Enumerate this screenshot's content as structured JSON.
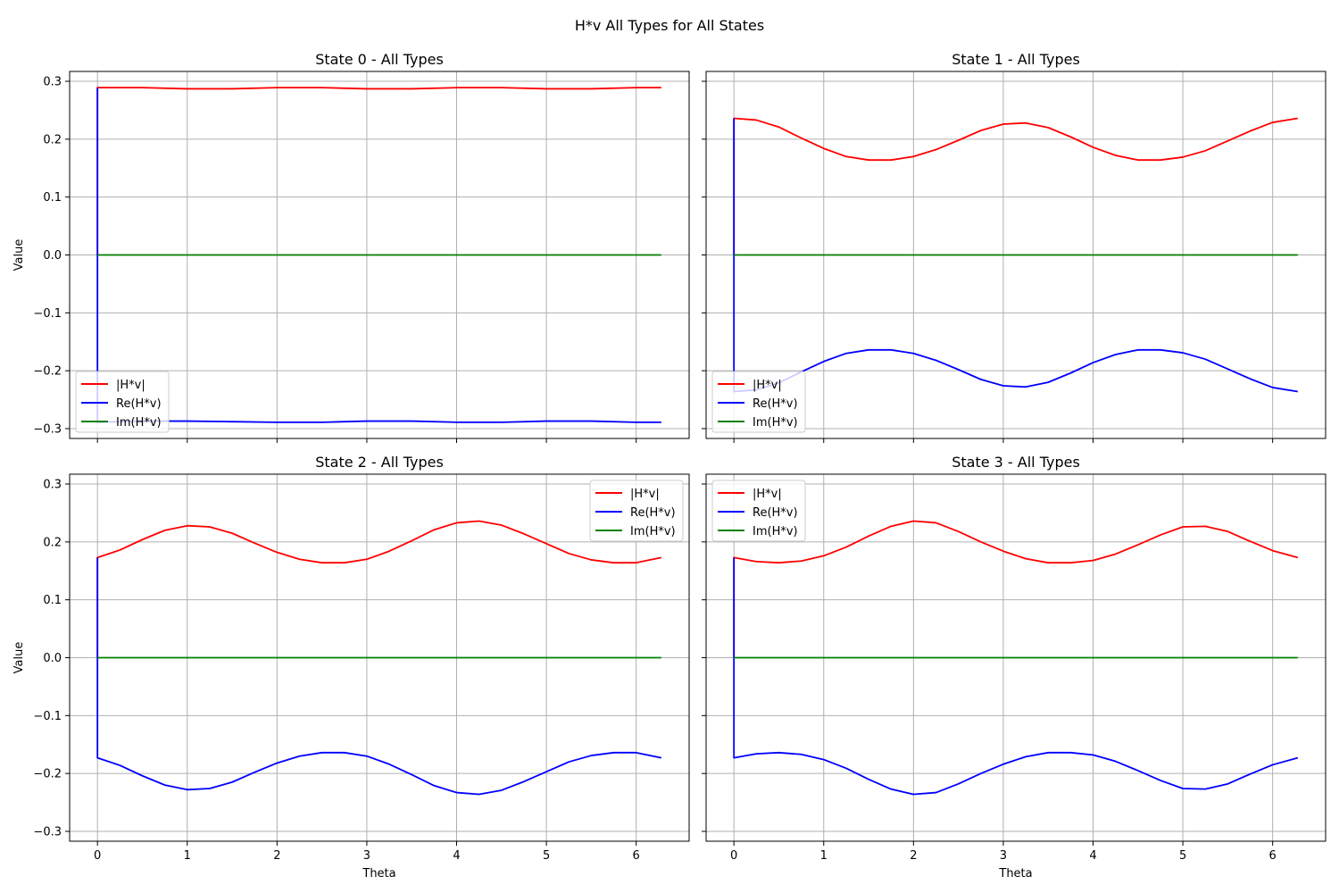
{
  "figure": {
    "suptitle": "H*v All Types for All States",
    "colors": {
      "abs": "#ff0000",
      "re": "#0000ff",
      "im": "#008000",
      "grid": "#b0b0b0",
      "axis": "#000000"
    }
  },
  "chart_data": [
    {
      "type": "line",
      "title": "State 0 - All Types",
      "xlabel": "",
      "ylabel": "Value",
      "xlim": [
        -0.31,
        6.59
      ],
      "ylim": [
        -0.317,
        0.317
      ],
      "xticks": [
        0,
        1,
        2,
        3,
        4,
        5,
        6
      ],
      "yticks": [
        -0.3,
        -0.2,
        -0.1,
        0.0,
        0.1,
        0.2,
        0.3
      ],
      "grid": true,
      "legend": "lower-left",
      "series": [
        {
          "name": "|H*v|",
          "color": "#ff0000",
          "x": [
            0,
            0,
            0.5,
            1,
            1.5,
            2,
            2.5,
            3,
            3.5,
            4,
            4.5,
            5,
            5.5,
            6,
            6.28
          ],
          "y": [
            0,
            0.289,
            0.289,
            0.287,
            0.287,
            0.289,
            0.289,
            0.287,
            0.287,
            0.289,
            0.289,
            0.287,
            0.287,
            0.289,
            0.289
          ]
        },
        {
          "name": "Re(H*v)",
          "color": "#0000ff",
          "x": [
            0,
            0,
            0.5,
            1,
            1.5,
            2,
            2.5,
            3,
            3.5,
            4,
            4.5,
            5,
            5.5,
            6,
            6.28
          ],
          "y": [
            0.289,
            -0.289,
            -0.287,
            -0.287,
            -0.288,
            -0.289,
            -0.289,
            -0.287,
            -0.287,
            -0.289,
            -0.289,
            -0.287,
            -0.287,
            -0.289,
            -0.289
          ]
        },
        {
          "name": "Im(H*v)",
          "color": "#008000",
          "x": [
            0,
            6.28
          ],
          "y": [
            0,
            0
          ]
        }
      ]
    },
    {
      "type": "line",
      "title": "State 1 - All Types",
      "xlabel": "",
      "ylabel": "",
      "xlim": [
        -0.31,
        6.59
      ],
      "ylim": [
        -0.317,
        0.317
      ],
      "xticks": [
        0,
        1,
        2,
        3,
        4,
        5,
        6
      ],
      "yticks": [
        -0.3,
        -0.2,
        -0.1,
        0.0,
        0.1,
        0.2,
        0.3
      ],
      "grid": true,
      "legend": "lower-left",
      "series": [
        {
          "name": "|H*v|",
          "color": "#ff0000",
          "x": [
            0,
            0,
            0.25,
            0.5,
            0.75,
            1,
            1.25,
            1.5,
            1.75,
            2,
            2.25,
            2.5,
            2.75,
            3,
            3.25,
            3.5,
            3.75,
            4,
            4.25,
            4.5,
            4.75,
            5,
            5.25,
            5.5,
            5.75,
            6,
            6.28
          ],
          "y": [
            0,
            0.236,
            0.233,
            0.221,
            0.202,
            0.184,
            0.17,
            0.164,
            0.164,
            0.17,
            0.182,
            0.198,
            0.215,
            0.226,
            0.228,
            0.22,
            0.204,
            0.186,
            0.172,
            0.164,
            0.164,
            0.169,
            0.18,
            0.197,
            0.214,
            0.229,
            0.236
          ]
        },
        {
          "name": "Re(H*v)",
          "color": "#0000ff",
          "x": [
            0,
            0,
            0.25,
            0.5,
            0.75,
            1,
            1.25,
            1.5,
            1.75,
            2,
            2.25,
            2.5,
            2.75,
            3,
            3.25,
            3.5,
            3.75,
            4,
            4.25,
            4.5,
            4.75,
            5,
            5.25,
            5.5,
            5.75,
            6,
            6.28
          ],
          "y": [
            0.236,
            -0.236,
            -0.233,
            -0.221,
            -0.202,
            -0.184,
            -0.17,
            -0.164,
            -0.164,
            -0.17,
            -0.182,
            -0.198,
            -0.215,
            -0.226,
            -0.228,
            -0.22,
            -0.204,
            -0.186,
            -0.172,
            -0.164,
            -0.164,
            -0.169,
            -0.18,
            -0.197,
            -0.214,
            -0.229,
            -0.236
          ]
        },
        {
          "name": "Im(H*v)",
          "color": "#008000",
          "x": [
            0,
            6.28
          ],
          "y": [
            0,
            0
          ]
        }
      ]
    },
    {
      "type": "line",
      "title": "State 2 - All Types",
      "xlabel": "Theta",
      "ylabel": "Value",
      "xlim": [
        -0.31,
        6.59
      ],
      "ylim": [
        -0.317,
        0.317
      ],
      "xticks": [
        0,
        1,
        2,
        3,
        4,
        5,
        6
      ],
      "yticks": [
        -0.3,
        -0.2,
        -0.1,
        0.0,
        0.1,
        0.2,
        0.3
      ],
      "grid": true,
      "legend": "upper-right",
      "series": [
        {
          "name": "|H*v|",
          "color": "#ff0000",
          "x": [
            0,
            0,
            0.25,
            0.5,
            0.75,
            1,
            1.25,
            1.5,
            1.75,
            2,
            2.25,
            2.5,
            2.75,
            3,
            3.25,
            3.5,
            3.75,
            4,
            4.25,
            4.5,
            4.75,
            5,
            5.25,
            5.5,
            5.75,
            6,
            6.28
          ],
          "y": [
            0,
            0.173,
            0.186,
            0.204,
            0.22,
            0.228,
            0.226,
            0.215,
            0.198,
            0.182,
            0.17,
            0.164,
            0.164,
            0.17,
            0.184,
            0.202,
            0.221,
            0.233,
            0.236,
            0.229,
            0.214,
            0.197,
            0.18,
            0.169,
            0.164,
            0.164,
            0.173
          ]
        },
        {
          "name": "Re(H*v)",
          "color": "#0000ff",
          "x": [
            0,
            0,
            0.25,
            0.5,
            0.75,
            1,
            1.25,
            1.5,
            1.75,
            2,
            2.25,
            2.5,
            2.75,
            3,
            3.25,
            3.5,
            3.75,
            4,
            4.25,
            4.5,
            4.75,
            5,
            5.25,
            5.5,
            5.75,
            6,
            6.28
          ],
          "y": [
            0.173,
            -0.173,
            -0.186,
            -0.204,
            -0.22,
            -0.228,
            -0.226,
            -0.215,
            -0.198,
            -0.182,
            -0.17,
            -0.164,
            -0.164,
            -0.17,
            -0.184,
            -0.202,
            -0.221,
            -0.233,
            -0.236,
            -0.229,
            -0.214,
            -0.197,
            -0.18,
            -0.169,
            -0.164,
            -0.164,
            -0.173
          ]
        },
        {
          "name": "Im(H*v)",
          "color": "#008000",
          "x": [
            0,
            6.28
          ],
          "y": [
            0,
            0
          ]
        }
      ]
    },
    {
      "type": "line",
      "title": "State 3 - All Types",
      "xlabel": "Theta",
      "ylabel": "",
      "xlim": [
        -0.31,
        6.59
      ],
      "ylim": [
        -0.317,
        0.317
      ],
      "xticks": [
        0,
        1,
        2,
        3,
        4,
        5,
        6
      ],
      "yticks": [
        -0.3,
        -0.2,
        -0.1,
        0.0,
        0.1,
        0.2,
        0.3
      ],
      "grid": true,
      "legend": "upper-left",
      "series": [
        {
          "name": "|H*v|",
          "color": "#ff0000",
          "x": [
            0,
            0,
            0.25,
            0.5,
            0.75,
            1,
            1.25,
            1.5,
            1.75,
            2,
            2.25,
            2.5,
            2.75,
            3,
            3.25,
            3.5,
            3.75,
            4,
            4.25,
            4.5,
            4.75,
            5,
            5.25,
            5.5,
            5.75,
            6,
            6.28
          ],
          "y": [
            0,
            0.173,
            0.166,
            0.164,
            0.167,
            0.176,
            0.191,
            0.21,
            0.227,
            0.236,
            0.233,
            0.218,
            0.2,
            0.184,
            0.171,
            0.164,
            0.164,
            0.168,
            0.179,
            0.195,
            0.212,
            0.226,
            0.227,
            0.218,
            0.201,
            0.185,
            0.173
          ]
        },
        {
          "name": "Re(H*v)",
          "color": "#0000ff",
          "x": [
            0,
            0,
            0.25,
            0.5,
            0.75,
            1,
            1.25,
            1.5,
            1.75,
            2,
            2.25,
            2.5,
            2.75,
            3,
            3.25,
            3.5,
            3.75,
            4,
            4.25,
            4.5,
            4.75,
            5,
            5.25,
            5.5,
            5.75,
            6,
            6.28
          ],
          "y": [
            0.173,
            -0.173,
            -0.166,
            -0.164,
            -0.167,
            -0.176,
            -0.191,
            -0.21,
            -0.227,
            -0.236,
            -0.233,
            -0.218,
            -0.2,
            -0.184,
            -0.171,
            -0.164,
            -0.164,
            -0.168,
            -0.179,
            -0.195,
            -0.212,
            -0.226,
            -0.227,
            -0.218,
            -0.201,
            -0.185,
            -0.173
          ]
        },
        {
          "name": "Im(H*v)",
          "color": "#008000",
          "x": [
            0,
            6.28
          ],
          "y": [
            0,
            0
          ]
        }
      ]
    }
  ]
}
